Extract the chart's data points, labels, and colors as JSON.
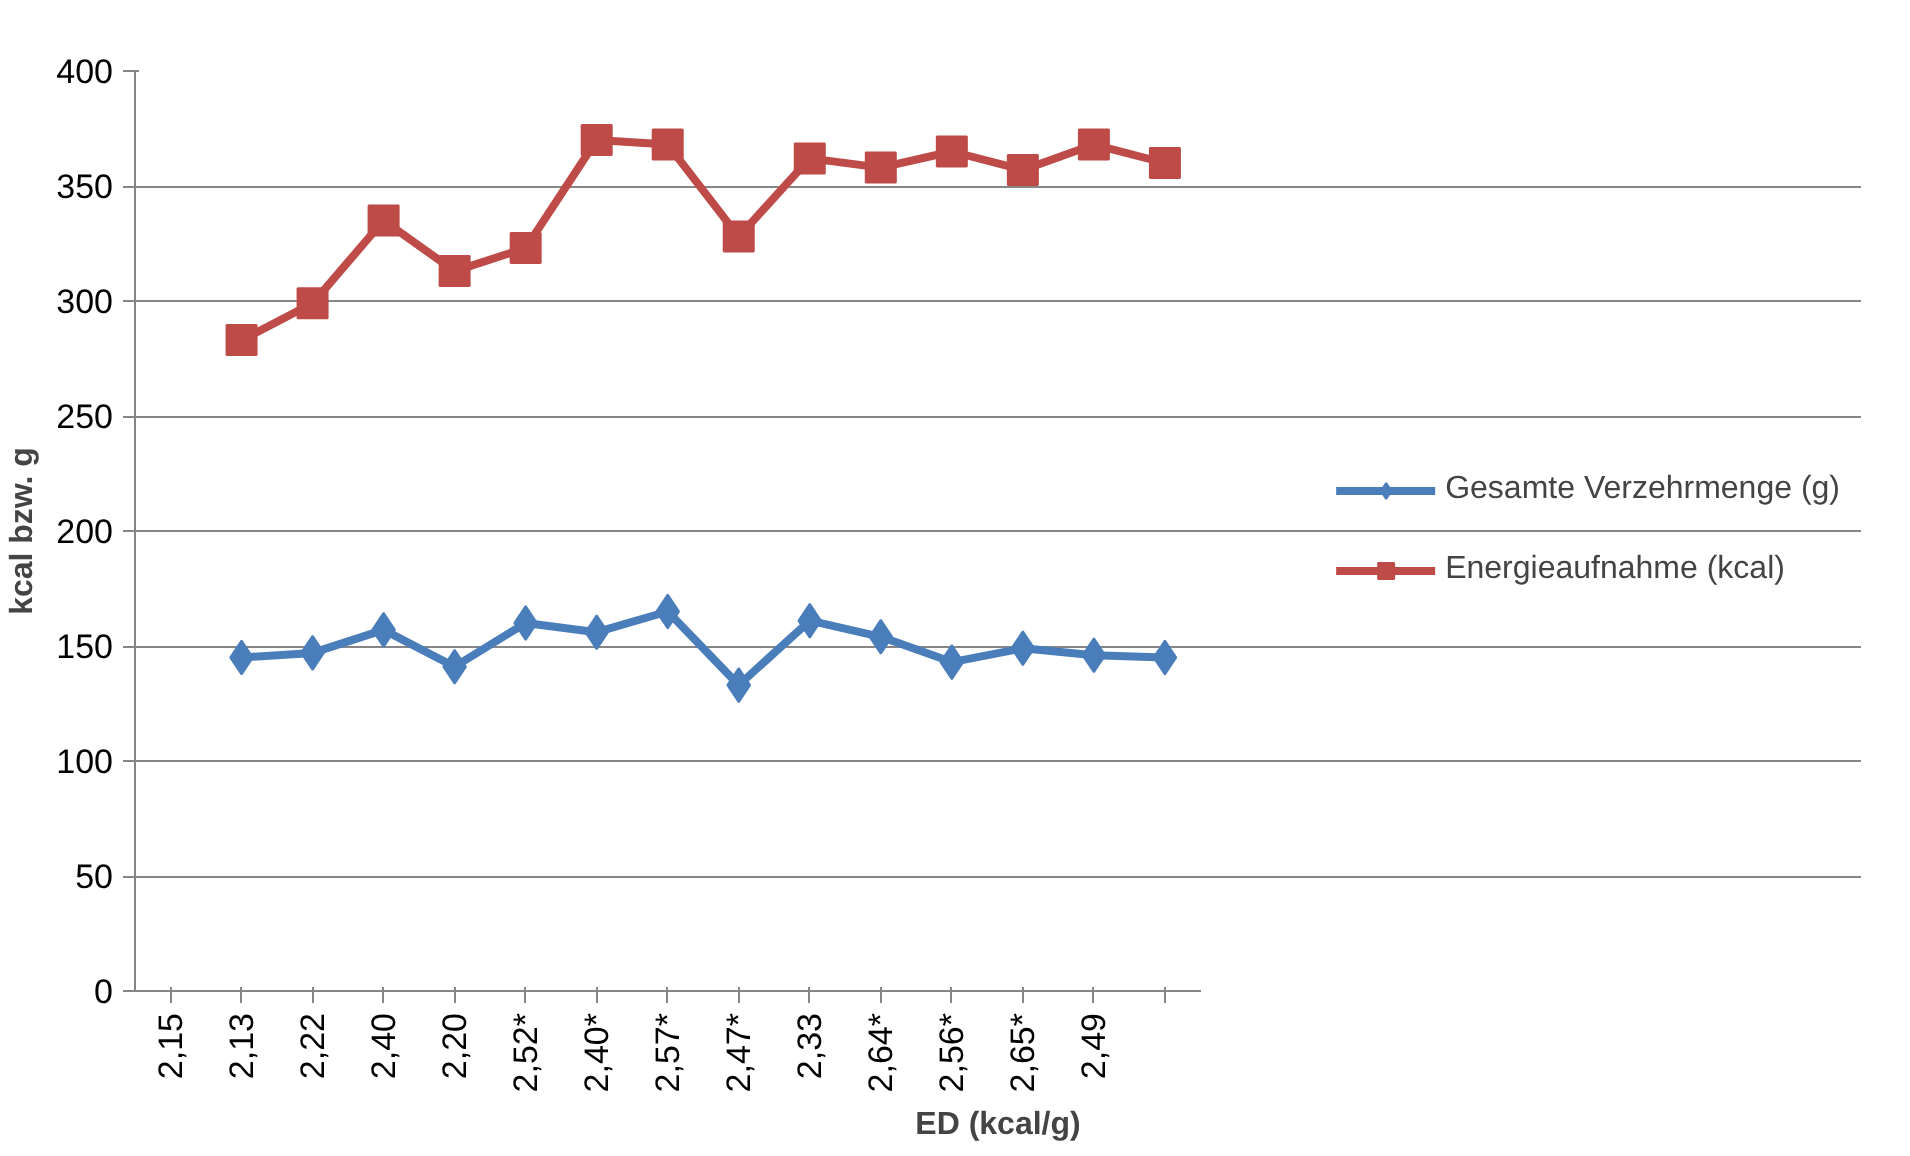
{
  "chart_data": {
    "type": "line",
    "xlabel": "ED (kcal/g)",
    "ylabel": "kcal bzw. g",
    "categories": [
      "2,15",
      "2,13",
      "2,22",
      "2,40",
      "2,20",
      "2,52*",
      "2,40*",
      "2,57*",
      "2,47*",
      "2,33",
      "2,64*",
      "2,56*",
      "2,65*",
      "2,49",
      null
    ],
    "series": [
      {
        "name": "Gesamte Verzehrmenge (g)",
        "color": "#4a7ebb",
        "marker": "diamond",
        "values": [
          null,
          145,
          147,
          157,
          141,
          160,
          156,
          165,
          133,
          161,
          154,
          143,
          149,
          146,
          145
        ]
      },
      {
        "name": "Energieaufnahme (kcal)",
        "color": "#be4b48",
        "marker": "square",
        "values": [
          null,
          283,
          299,
          335,
          313,
          323,
          370,
          368,
          328,
          362,
          358,
          365,
          357,
          368,
          360
        ]
      }
    ],
    "ylim": [
      0,
      400
    ],
    "yticks": [
      0,
      50,
      100,
      150,
      200,
      250,
      300,
      350,
      400
    ],
    "grid": "y",
    "legend": "right"
  }
}
